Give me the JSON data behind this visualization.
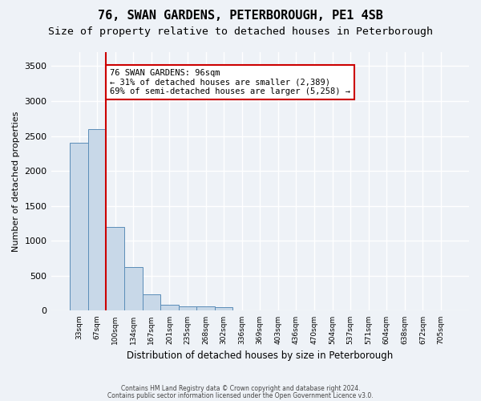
{
  "title": "76, SWAN GARDENS, PETERBOROUGH, PE1 4SB",
  "subtitle": "Size of property relative to detached houses in Peterborough",
  "xlabel": "Distribution of detached houses by size in Peterborough",
  "ylabel": "Number of detached properties",
  "footnote1": "Contains HM Land Registry data © Crown copyright and database right 2024.",
  "footnote2": "Contains public sector information licensed under the Open Government Licence v3.0.",
  "bin_labels": [
    "33sqm",
    "67sqm",
    "100sqm",
    "134sqm",
    "167sqm",
    "201sqm",
    "235sqm",
    "268sqm",
    "302sqm",
    "336sqm",
    "369sqm",
    "403sqm",
    "436sqm",
    "470sqm",
    "504sqm",
    "537sqm",
    "571sqm",
    "604sqm",
    "638sqm",
    "672sqm",
    "705sqm"
  ],
  "bar_values": [
    2400,
    2600,
    1200,
    630,
    240,
    90,
    60,
    60,
    50,
    0,
    0,
    0,
    0,
    0,
    0,
    0,
    0,
    0,
    0,
    0,
    0
  ],
  "bar_color": "#c8d8e8",
  "bar_edge_color": "#5b8db8",
  "vline_x": 1.5,
  "vline_color": "#cc0000",
  "annotation_text": "76 SWAN GARDENS: 96sqm\n← 31% of detached houses are smaller (2,389)\n69% of semi-detached houses are larger (5,258) →",
  "annotation_box_color": "#cc0000",
  "ylim": [
    0,
    3700
  ],
  "background_color": "#eef2f7",
  "axes_background": "#eef2f7",
  "grid_color": "#ffffff",
  "title_fontsize": 11,
  "subtitle_fontsize": 9.5
}
